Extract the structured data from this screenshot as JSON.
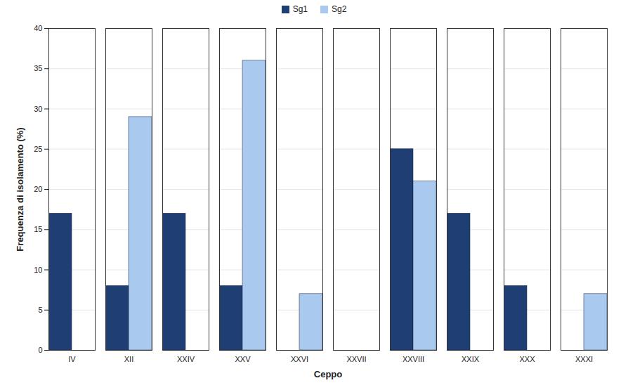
{
  "chart_data": {
    "type": "bar",
    "x_label": "Ceppo",
    "y_label": "Frequenza di isolamento (%)",
    "categories": [
      "IV",
      "XII",
      "XXIV",
      "XXV",
      "XXVI",
      "XXVII",
      "XXVIII",
      "XXIX",
      "XXX",
      "XXXI"
    ],
    "series": [
      {
        "name": "Sg1",
        "color": "#1f3e74",
        "values": [
          17,
          8,
          17,
          8,
          0,
          0,
          25,
          17,
          8,
          0
        ]
      },
      {
        "name": "Sg2",
        "color": "#a9c9ee",
        "values": [
          0,
          29,
          0,
          36,
          7,
          0,
          21,
          0,
          0,
          7
        ]
      }
    ],
    "ylim": [
      0,
      40
    ],
    "yticks": [
      0,
      5,
      10,
      15,
      20,
      25,
      30,
      35,
      40
    ],
    "grid": true,
    "legend": "top"
  }
}
